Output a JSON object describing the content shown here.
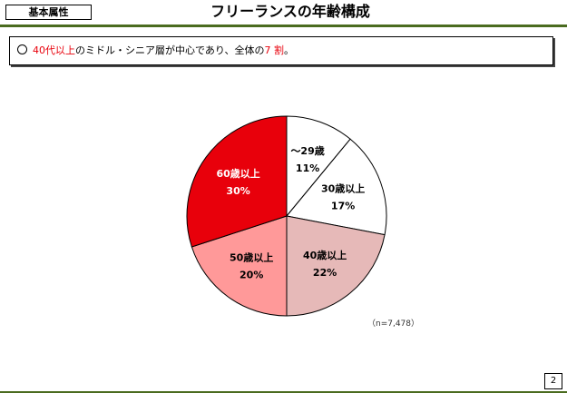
{
  "header": {
    "tag": "基本属性",
    "title": "フリーランスの年齢構成"
  },
  "summary": {
    "hl1": "40代以上",
    "mid": "のミドル・シニア層が中心であり、全体の",
    "hl2": "7 割",
    "end": "。"
  },
  "chart_data": {
    "type": "pie",
    "unit": "%",
    "slices": [
      {
        "label": "～29歳",
        "value": 11,
        "color": "#ffffff",
        "text_color": "#000000"
      },
      {
        "label": "30歳以上",
        "value": 17,
        "color": "#ffffff",
        "text_color": "#000000"
      },
      {
        "label": "40歳以上",
        "value": 22,
        "color": "#e6b9b8",
        "text_color": "#000000"
      },
      {
        "label": "50歳以上",
        "value": 20,
        "color": "#ff9999",
        "text_color": "#000000"
      },
      {
        "label": "60歳以上",
        "value": 30,
        "color": "#e8000b",
        "text_color": "#ffffff"
      }
    ],
    "start": "12 o'clock",
    "direction": "clockwise",
    "note": "（n=7,478）"
  },
  "page": {
    "number": "2"
  },
  "colors": {
    "accent_red": "#e8000b",
    "rule_green": "#4a6b1f"
  }
}
